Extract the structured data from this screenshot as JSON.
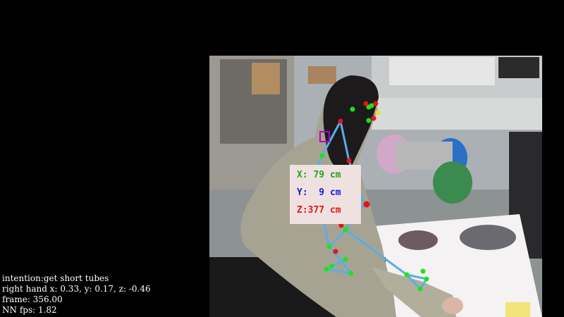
{
  "depth_readout": {
    "x_text": "X: 79 cm",
    "y_text": "Y:  9 cm",
    "z_text": "Z:377 cm",
    "x_color": "#1fa51f",
    "y_color": "#1a1ad8",
    "z_color": "#e11717"
  },
  "status": {
    "intention": "intention:get short tubes",
    "right_hand": "right hand x: 0.33, y: 0.17, z: -0.46",
    "frame": "frame: 356.00",
    "fps": "NN fps: 1.82"
  },
  "overlay_colors": {
    "skeleton": "#58aee6",
    "keypoint_green": "#19e619",
    "keypoint_red": "#ee1111",
    "keypoint_yellow": "#f2e013",
    "tracker_box": "#b400c8"
  }
}
